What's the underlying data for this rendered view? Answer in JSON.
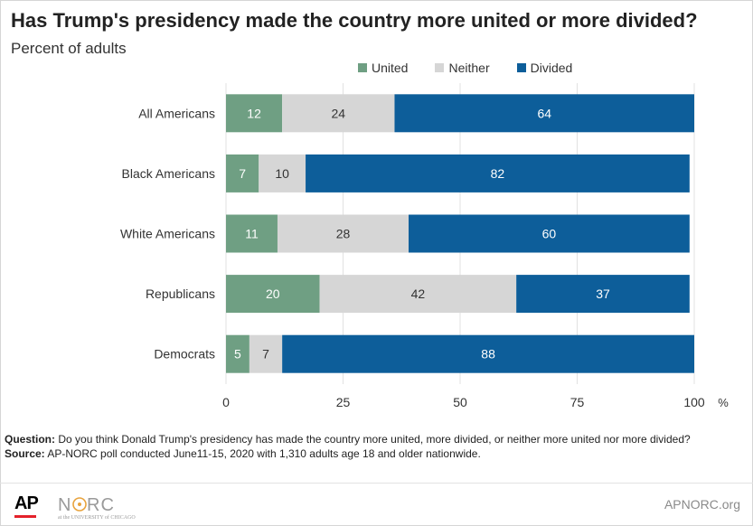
{
  "title": "Has Trump's presidency made the country more united or more divided?",
  "subtitle": "Percent of adults",
  "colors": {
    "united": "#6f9f83",
    "neither": "#d6d6d6",
    "divided": "#0d5e9a",
    "axis_text": "#333333",
    "grid": "#e1e1e1"
  },
  "legend": [
    {
      "label": "United",
      "color": "#6f9f83"
    },
    {
      "label": "Neither",
      "color": "#d6d6d6"
    },
    {
      "label": "Divided",
      "color": "#0d5e9a"
    }
  ],
  "chart_data": {
    "type": "bar",
    "orientation": "horizontal",
    "stacked": true,
    "categories": [
      "All Americans",
      "Black Americans",
      "White Americans",
      "Republicans",
      "Democrats"
    ],
    "series": [
      {
        "name": "United",
        "values": [
          12,
          7,
          11,
          20,
          5
        ]
      },
      {
        "name": "Neither",
        "values": [
          24,
          10,
          28,
          42,
          7
        ]
      },
      {
        "name": "Divided",
        "values": [
          64,
          82,
          60,
          37,
          88
        ]
      }
    ],
    "xlim": [
      0,
      100
    ],
    "xticks": [
      "0",
      "25",
      "50",
      "75",
      "100"
    ],
    "xunit": "%",
    "grid": true,
    "legend_position": "top"
  },
  "notes": {
    "question_label": "Question:",
    "question_text": "Do you think Donald Trump's presidency has made the country more united, more divided, or neither more united nor more divided?",
    "source_label": "Source:",
    "source_text": "AP-NORC poll conducted June11-15, 2020 with 1,310 adults age 18 and older nationwide."
  },
  "footer": {
    "ap_logo": "AP",
    "norc_logo": "NORC",
    "norc_tagline": "at the UNIVERSITY of CHICAGO",
    "url": "APNORC.org"
  }
}
